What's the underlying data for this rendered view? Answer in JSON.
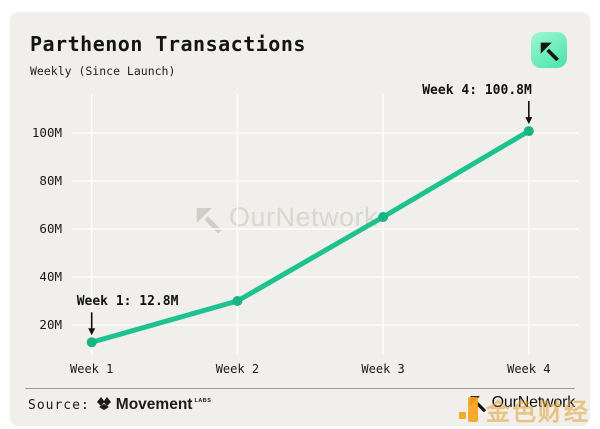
{
  "header": {
    "title": "Parthenon Transactions",
    "subtitle": "Weekly (Since Launch)",
    "badge_icon": "ournetwork-mark",
    "badge_color": "#5ee7ae"
  },
  "chart_data": {
    "type": "line",
    "categories": [
      "Week 1",
      "Week 2",
      "Week 3",
      "Week 4"
    ],
    "values": [
      12.8,
      30,
      65,
      100.8
    ],
    "title": "Parthenon Transactions",
    "subtitle": "Weekly (Since Launch)",
    "xlabel": "",
    "ylabel": "",
    "y_ticks": [
      "20M",
      "40M",
      "60M",
      "80M",
      "100M"
    ],
    "y_tick_values": [
      20,
      40,
      60,
      80,
      100
    ],
    "ylim": [
      8,
      112
    ],
    "grid": true,
    "line_color": "#1ec28e",
    "marker_color": "#17b583",
    "annotations": [
      {
        "label": "Week 1: 12.8M",
        "week_index": 0,
        "value": 12.8,
        "align": "left"
      },
      {
        "label": "Week 4: 100.8M",
        "week_index": 3,
        "value": 100.8,
        "align": "right"
      }
    ],
    "watermark": "OurNetwork"
  },
  "footer": {
    "source_label": "Source:",
    "source_name": "Movement",
    "source_suffix": "LABS",
    "brand": "OurNetwork",
    "overlay_watermark_text": "金色财经",
    "overlay_color": "#f7a41d"
  }
}
